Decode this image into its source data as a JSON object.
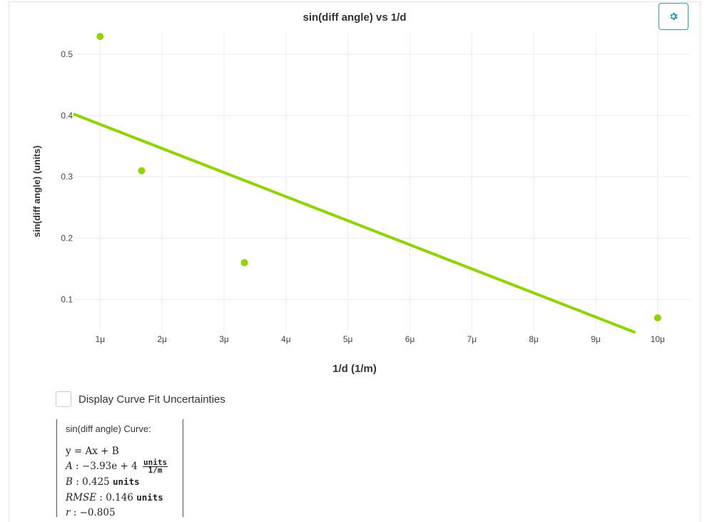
{
  "chart_data": {
    "type": "scatter",
    "title": "sin(diff angle) vs 1/d",
    "xlabel": "1/d (1/m)",
    "ylabel": "sin(diff angle) (units)",
    "x_ticks": [
      1e-06,
      2e-06,
      3e-06,
      4e-06,
      5e-06,
      6e-06,
      7e-06,
      8e-06,
      9e-06,
      1e-05
    ],
    "x_tick_labels": [
      "1μ",
      "2μ",
      "3μ",
      "4μ",
      "5μ",
      "6μ",
      "7μ",
      "8μ",
      "9μ",
      "10μ"
    ],
    "y_ticks": [
      0.1,
      0.2,
      0.3,
      0.4,
      0.5
    ],
    "y_tick_labels": [
      "0.1",
      "0.2",
      "0.3",
      "0.4",
      "0.5"
    ],
    "xlim": [
      5.7e-07,
      1.052e-05
    ],
    "ylim": [
      0.048,
      0.535
    ],
    "grid": true,
    "series": [
      {
        "type": "scatter",
        "color": "#8fd400",
        "points": [
          {
            "x": 1e-06,
            "y": 0.529
          },
          {
            "x": 1.67e-06,
            "y": 0.31
          },
          {
            "x": 3.33e-06,
            "y": 0.16
          },
          {
            "x": 1e-05,
            "y": 0.07
          }
        ]
      },
      {
        "type": "line",
        "color": "#8fd400",
        "slope": -39300,
        "intercept": 0.425,
        "x_range": [
          5.7e-07,
          9.64e-06
        ]
      }
    ]
  },
  "controls": {
    "uncertainties_label": "Display Curve Fit Uncertainties",
    "uncertainties_checked": false
  },
  "curve_fit": {
    "title": "sin(diff angle) Curve:",
    "equation": "y = Ax + B",
    "A_label": "A",
    "A_value": "−3.93e + 4",
    "A_units_num": "units",
    "A_units_den": "1/m",
    "B_label": "B",
    "B_value": "0.425",
    "B_units": "units",
    "RMSE_label": "RMSE",
    "RMSE_value": "0.146",
    "RMSE_units": "units",
    "r_label": "r",
    "r_value": "−0.805"
  },
  "icons": {
    "settings": "gear-icon"
  },
  "colors": {
    "accent": "#2a9db5",
    "series": "#8fd400"
  }
}
